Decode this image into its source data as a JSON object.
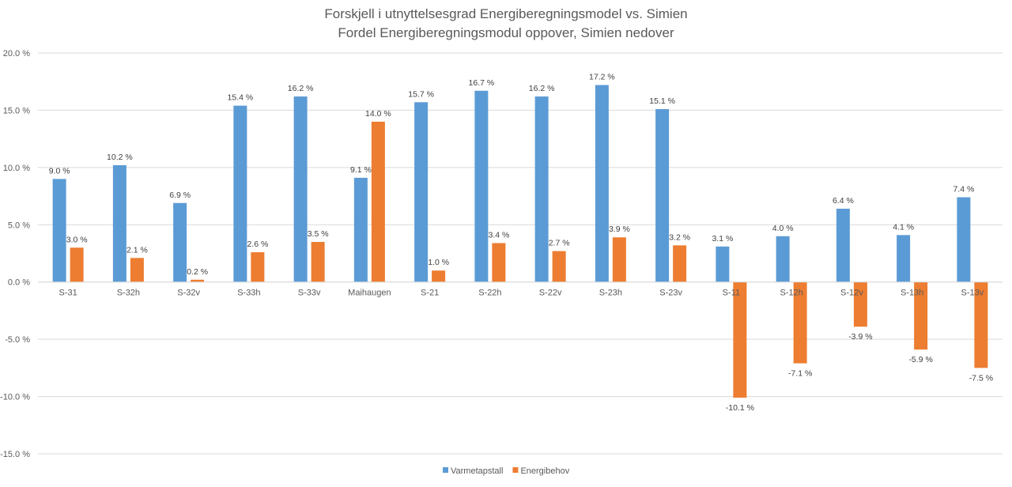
{
  "chart_data": {
    "type": "bar",
    "title": "Forskjell i utnyttelsesgrad Energiberegningsmodel vs. Simien",
    "subtitle": "Fordel Energiberegningsmodul oppover, Simien nedover",
    "categories": [
      "S-31",
      "S-32h",
      "S-32v",
      "S-33h",
      "S-33v",
      "Maihaugen",
      "S-21",
      "S-22h",
      "S-22v",
      "S-23h",
      "S-23v",
      "S-11",
      "S-12h",
      "S-12v",
      "S-13h",
      "S-13v"
    ],
    "series": [
      {
        "name": "Varmetapstall",
        "color": "#5B9BD5",
        "values": [
          9.0,
          10.2,
          6.9,
          15.4,
          16.2,
          9.1,
          15.7,
          16.7,
          16.2,
          17.2,
          15.1,
          3.1,
          4.0,
          6.4,
          4.1,
          7.4
        ],
        "labels": [
          "9.0 %",
          "10.2 %",
          "6.9 %",
          "15.4 %",
          "16.2 %",
          "9.1 %",
          "15.7 %",
          "16.7 %",
          "16.2 %",
          "17.2 %",
          "15.1 %",
          "3.1 %",
          "4.0 %",
          "6.4 %",
          "4.1 %",
          "7.4 %"
        ]
      },
      {
        "name": "Energibehov",
        "color": "#ED7D31",
        "values": [
          3.0,
          2.1,
          0.2,
          2.6,
          3.5,
          14.0,
          1.0,
          3.4,
          2.7,
          3.9,
          3.2,
          -10.1,
          -7.1,
          -3.9,
          -5.9,
          -7.5
        ],
        "labels": [
          "3.0 %",
          "2.1 %",
          "0.2 %",
          "2.6 %",
          "3.5 %",
          "14.0 %",
          "1.0 %",
          "3.4 %",
          "2.7 %",
          "3.9 %",
          "3.2 %",
          "-10.1 %",
          "-7.1 %",
          "-3.9 %",
          "-5.9 %",
          "-7.5 %"
        ]
      }
    ],
    "ylim": [
      -15,
      20
    ],
    "yticks": [
      20,
      15,
      10,
      5,
      0,
      -5,
      -10,
      -15
    ],
    "ytick_labels": [
      "20.0 %",
      "15.0 %",
      "10.0 %",
      "5.0 %",
      "0.0 %",
      "-5.0 %",
      "-10.0 %",
      "-15.0 %"
    ],
    "grid": true,
    "legend_position": "bottom"
  }
}
